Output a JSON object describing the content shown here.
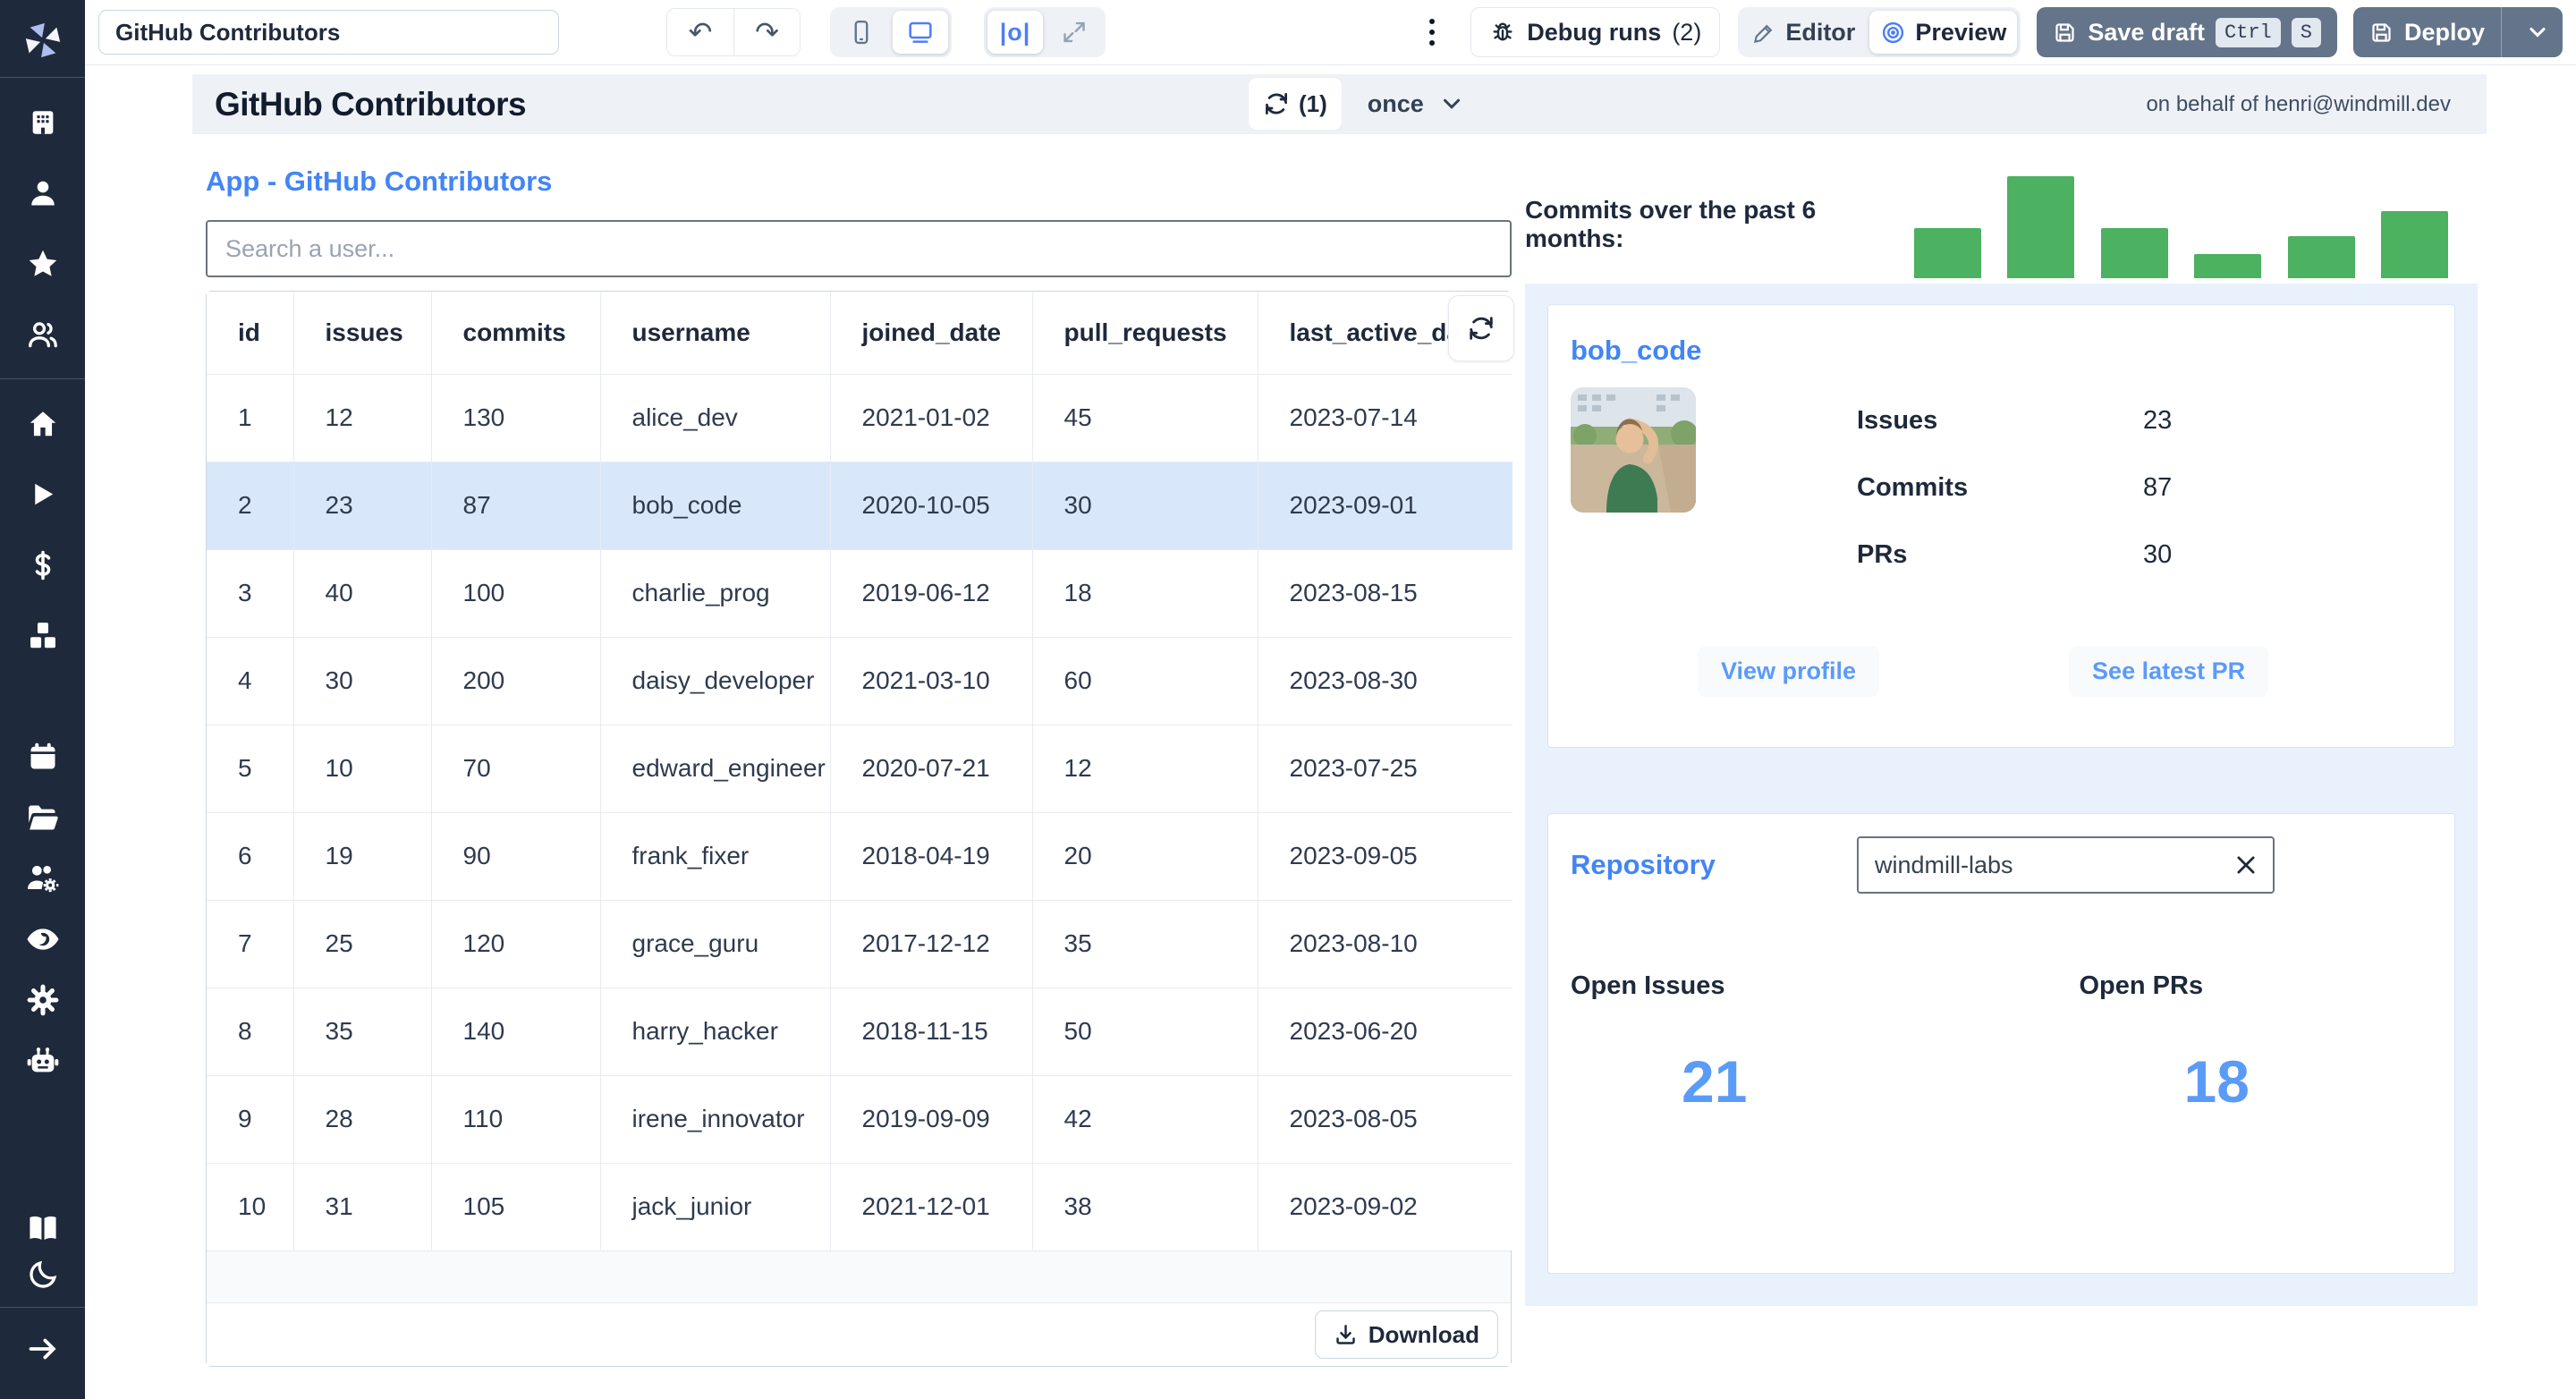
{
  "toolbar": {
    "app_title_value": "GitHub Contributors",
    "debug_runs": "Debug runs",
    "debug_count": "(2)",
    "editor": "Editor",
    "preview": "Preview",
    "save_draft": "Save draft",
    "kbd": [
      "Ctrl",
      "S"
    ],
    "deploy": "Deploy"
  },
  "header": {
    "title": "GitHub Contributors",
    "refresh_count": "(1)",
    "schedule_value": "once",
    "on_behalf": "on behalf of henri@windmill.dev"
  },
  "app": {
    "section_title": "App - GitHub Contributors",
    "search_placeholder": "Search a user...",
    "download": "Download"
  },
  "table": {
    "columns": [
      "id",
      "issues",
      "commits",
      "username",
      "joined_date",
      "pull_requests",
      "last_active_date"
    ],
    "rows": [
      [
        "1",
        "12",
        "130",
        "alice_dev",
        "2021-01-02",
        "45",
        "2023-07-14"
      ],
      [
        "2",
        "23",
        "87",
        "bob_code",
        "2020-10-05",
        "30",
        "2023-09-01"
      ],
      [
        "3",
        "40",
        "100",
        "charlie_prog",
        "2019-06-12",
        "18",
        "2023-08-15"
      ],
      [
        "4",
        "30",
        "200",
        "daisy_developer",
        "2021-03-10",
        "60",
        "2023-08-30"
      ],
      [
        "5",
        "10",
        "70",
        "edward_engineer",
        "2020-07-21",
        "12",
        "2023-07-25"
      ],
      [
        "6",
        "19",
        "90",
        "frank_fixer",
        "2018-04-19",
        "20",
        "2023-09-05"
      ],
      [
        "7",
        "25",
        "120",
        "grace_guru",
        "2017-12-12",
        "35",
        "2023-08-10"
      ],
      [
        "8",
        "35",
        "140",
        "harry_hacker",
        "2018-11-15",
        "50",
        "2023-06-20"
      ],
      [
        "9",
        "28",
        "110",
        "irene_innovator",
        "2019-09-09",
        "42",
        "2023-08-05"
      ],
      [
        "10",
        "31",
        "105",
        "jack_junior",
        "2021-12-01",
        "38",
        "2023-09-02"
      ]
    ],
    "highlighted_row": 1
  },
  "chart_data": {
    "type": "bar",
    "title": "Commits over the past 6 months:",
    "values": [
      49,
      100,
      49,
      24,
      41,
      66
    ],
    "ymax": 100,
    "bar_color": "#4cb161",
    "xlabel": "",
    "ylabel": "",
    "grid": false,
    "legend": "none",
    "note": "no axis ticks or labels are rendered; bar heights read relative to tallest bar = 100"
  },
  "user_card": {
    "username": "bob_code",
    "stats": [
      {
        "label": "Issues",
        "value": "23"
      },
      {
        "label": "Commits",
        "value": "87"
      },
      {
        "label": "PRs",
        "value": "30"
      }
    ],
    "view_profile": "View profile",
    "see_latest_pr": "See latest PR"
  },
  "repository": {
    "title": "Repository",
    "input_value": "windmill-labs",
    "open_issues_label": "Open Issues",
    "open_issues_value": "21",
    "open_prs_label": "Open PRs",
    "open_prs_value": "18"
  },
  "sidebar": {
    "icons": [
      "windmill-logo",
      "workspace-icon",
      "user-icon",
      "favorites-star-icon",
      "groups-icon",
      "home-icon",
      "runs-play-icon",
      "variables-dollar-icon",
      "resources-cubes-icon",
      "schedules-calendar-icon",
      "folders-icon",
      "workers-icon",
      "audit-logs-eye-icon",
      "settings-gear-icon",
      "ai-robot-icon",
      "docs-book-icon",
      "dark-mode-moon-icon",
      "collapse-arrow-icon"
    ]
  },
  "colors": {
    "accent_blue": "#4285f5",
    "soft_blue": "#5b9bf8",
    "bar_green": "#4cb161",
    "sidebar_bg": "#1e293b",
    "row_highlight": "#d9e7fa",
    "panel_bg": "#e9f1fc",
    "slate_button": "#64748b"
  }
}
